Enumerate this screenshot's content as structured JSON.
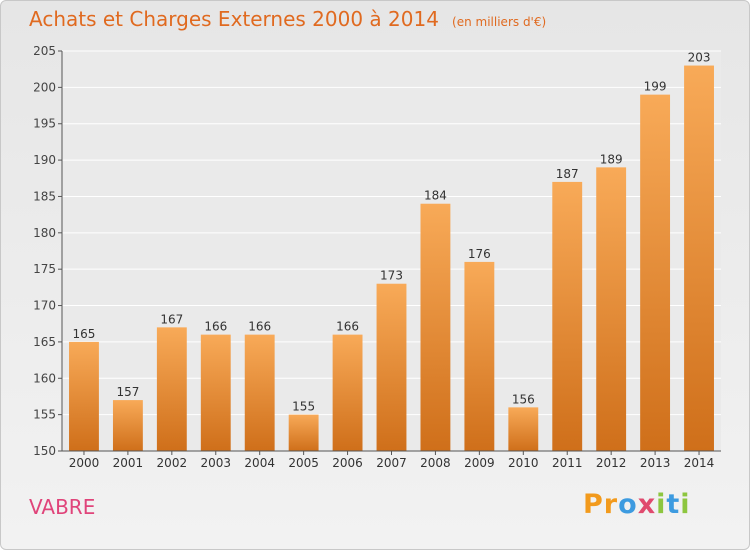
{
  "header": {
    "title": "Achats et Charges Externes 2000 à 2014",
    "unit_note": "(en milliers d'€)"
  },
  "commune": "VABRE",
  "logo": {
    "letters": [
      "P",
      "r",
      "o",
      "x",
      "i",
      "t",
      "i"
    ],
    "colors": [
      "#f29a1c",
      "#f29a1c",
      "#3d9be0",
      "#e04a6e",
      "#8dc63f",
      "#3d9be0",
      "#8dc63f"
    ]
  },
  "colors": {
    "bar_top": "#f8aa58",
    "bar_bottom": "#cf6f1a",
    "title": "#e06a20",
    "commune": "#e0447a"
  },
  "chart_data": {
    "type": "bar",
    "title": "Achats et Charges Externes 2000 à 2014",
    "ylabel": "(en milliers d'€)",
    "xlabel": "",
    "categories": [
      "2000",
      "2001",
      "2002",
      "2003",
      "2004",
      "2005",
      "2006",
      "2007",
      "2008",
      "2009",
      "2010",
      "2011",
      "2012",
      "2013",
      "2014"
    ],
    "values": [
      165,
      157,
      167,
      166,
      166,
      155,
      166,
      173,
      184,
      176,
      156,
      187,
      189,
      199,
      203
    ],
    "ylim": [
      150,
      205
    ],
    "yticks": [
      150,
      155,
      160,
      165,
      170,
      175,
      180,
      185,
      190,
      195,
      200,
      205
    ],
    "grid": true
  }
}
